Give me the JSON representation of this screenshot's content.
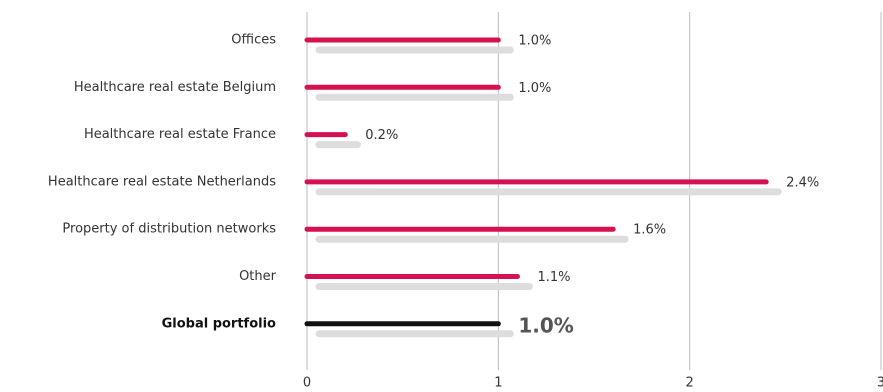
{
  "chart_data": {
    "type": "bar",
    "orientation": "horizontal",
    "categories": [
      "Offices",
      "Healthcare real estate Belgium",
      "Healthcare real estate France",
      "Healthcare real estate Netherlands",
      "Property of distribution networks",
      "Other",
      "Global portfolio"
    ],
    "values": [
      1.0,
      1.0,
      0.2,
      2.4,
      1.6,
      1.1,
      1.0
    ],
    "value_labels": [
      "1.0%",
      "1.0%",
      "0.2%",
      "2.4%",
      "1.6%",
      "1.1%",
      "1.0%"
    ],
    "colors": [
      "#d6114f",
      "#d6114f",
      "#d6114f",
      "#d6114f",
      "#d6114f",
      "#d6114f",
      "#111111"
    ],
    "xlim": [
      0,
      3
    ],
    "xticks": [
      0,
      1,
      2,
      3
    ],
    "grid": true
  }
}
